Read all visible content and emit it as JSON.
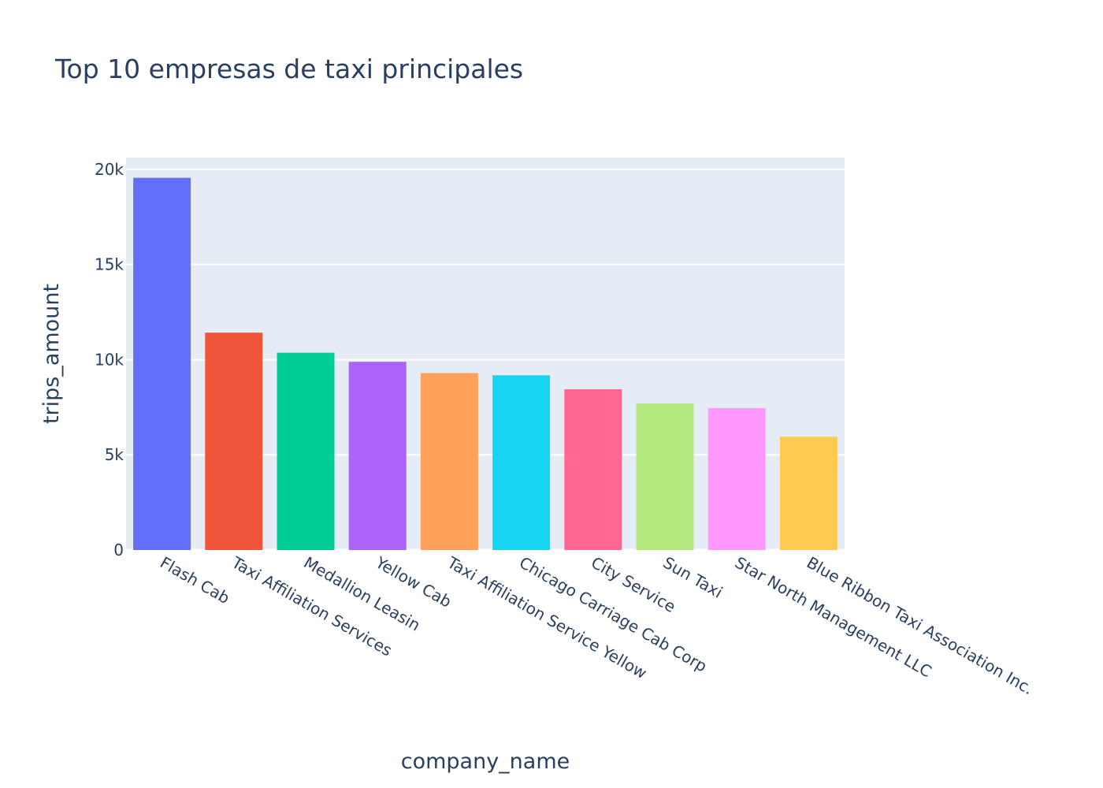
{
  "chart_data": {
    "type": "bar",
    "title": "Top 10 empresas de taxi principales",
    "xlabel": "company_name",
    "ylabel": "trips_amount",
    "categories": [
      "Flash Cab",
      "Taxi Affiliation Services",
      "Medallion Leasin",
      "Yellow Cab",
      "Taxi Affiliation Service Yellow",
      "Chicago Carriage Cab Corp",
      "City Service",
      "Sun Taxi",
      "Star North Management LLC",
      "Blue Ribbon Taxi Association Inc."
    ],
    "values": [
      19558,
      11422,
      10367,
      9888,
      9299,
      9181,
      8448,
      7701,
      7455,
      5953
    ],
    "ylim": [
      0,
      20620
    ],
    "yticks": [
      0,
      5000,
      10000,
      15000,
      20000
    ],
    "ytick_labels": [
      "0",
      "5k",
      "10k",
      "15k",
      "20k"
    ],
    "grid": true,
    "legend": "none",
    "colors": [
      "#636efa",
      "#ef553b",
      "#00cc96",
      "#ab63fa",
      "#ffa15a",
      "#19d3f3",
      "#ff6692",
      "#b6e880",
      "#ff97ff",
      "#fecb52"
    ],
    "plot_background": "#e5ecf6",
    "grid_color": "#ffffff",
    "text_color": "#2a3f5f"
  }
}
